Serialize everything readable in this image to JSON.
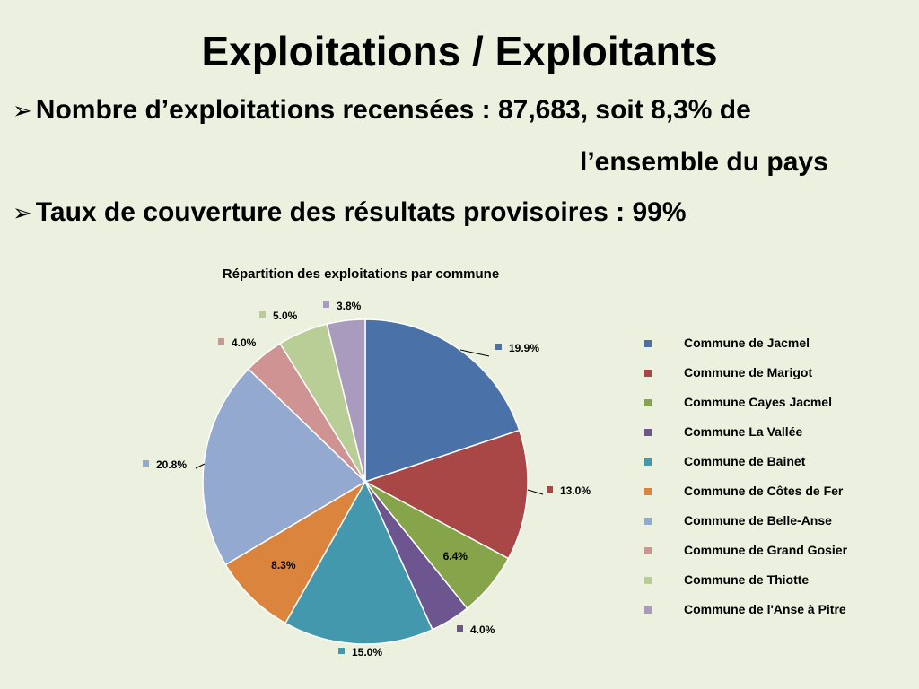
{
  "slide": {
    "title": "Exploitations / Exploitants",
    "bullet1_line1": "Nombre d’exploitations recensées :  87,683, soit 8,3% de",
    "bullet1_line2": "l’ensemble du pays",
    "bullet2": "Taux de couverture des résultats  provisoires : 99%",
    "bullet_icon": "arrow-bullet-icon"
  },
  "chart_data": {
    "type": "pie",
    "title": "Répartition des exploitations par commune",
    "legend_position": "right",
    "series": [
      {
        "name": "Commune de Jacmel",
        "value": 19.9,
        "label": "19.9%",
        "color": "#4a72a8"
      },
      {
        "name": "Commune de Marigot",
        "value": 13.0,
        "label": "13.0%",
        "color": "#a84746"
      },
      {
        "name": "Commune Cayes Jacmel",
        "value": 6.4,
        "label": "6.4%",
        "color": "#86a44a"
      },
      {
        "name": "Commune La Vallée",
        "value": 4.0,
        "label": "4.0%",
        "color": "#6d558f"
      },
      {
        "name": "Commune de Bainet",
        "value": 15.0,
        "label": "15.0%",
        "color": "#4398ae"
      },
      {
        "name": "Commune de Côtes de Fer",
        "value": 8.3,
        "label": "8.3%",
        "color": "#db843d"
      },
      {
        "name": "Commune de Belle-Anse",
        "value": 20.8,
        "label": "20.8%",
        "color": "#93a9cf"
      },
      {
        "name": "Commune de Grand Gosier",
        "value": 4.0,
        "label": "4.0%",
        "color": "#d09393"
      },
      {
        "name": "Commune de Thiotte",
        "value": 5.0,
        "label": "5.0%",
        "color": "#b9cd96"
      },
      {
        "name": "Commune de l'Anse à Pitre",
        "value": 3.8,
        "label": "3.8%",
        "color": "#a99bbd"
      }
    ]
  }
}
